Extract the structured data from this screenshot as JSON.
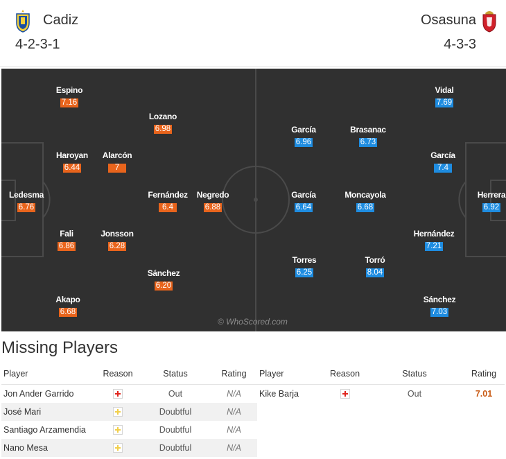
{
  "home": {
    "name": "Cadiz",
    "formation": "4-2-3-1",
    "crest_icon": "cadiz-crest-icon",
    "color": "#e8641c",
    "players": [
      {
        "name": "Espino",
        "rating": "7.16"
      },
      {
        "name": "Lozano",
        "rating": "6.98"
      },
      {
        "name": "Haroyan",
        "rating": "6.44"
      },
      {
        "name": "Alarcón",
        "rating": "7"
      },
      {
        "name": "Ledesma",
        "rating": "6.76"
      },
      {
        "name": "Fernández",
        "rating": "6.4"
      },
      {
        "name": "Negredo",
        "rating": "6.88"
      },
      {
        "name": "Fali",
        "rating": "6.86"
      },
      {
        "name": "Jonsson",
        "rating": "6.28"
      },
      {
        "name": "Sánchez",
        "rating": "6.20"
      },
      {
        "name": "Akapo",
        "rating": "6.68"
      }
    ]
  },
  "away": {
    "name": "Osasuna",
    "formation": "4-3-3",
    "crest_icon": "osasuna-crest-icon",
    "color": "#1e8ce0",
    "players": [
      {
        "name": "Vidal",
        "rating": "7.69"
      },
      {
        "name": "García",
        "rating": "6.96"
      },
      {
        "name": "Brasanac",
        "rating": "6.73"
      },
      {
        "name": "García",
        "rating": "7.4"
      },
      {
        "name": "García",
        "rating": "6.64"
      },
      {
        "name": "Moncayola",
        "rating": "6.68"
      },
      {
        "name": "Herrera",
        "rating": "6.92"
      },
      {
        "name": "Hernández",
        "rating": "7.21"
      },
      {
        "name": "Torres",
        "rating": "6.25"
      },
      {
        "name": "Torró",
        "rating": "8.04"
      },
      {
        "name": "Sánchez",
        "rating": "7.03"
      }
    ]
  },
  "watermark": "© WhoScored.com",
  "missing": {
    "title": "Missing Players",
    "columns": [
      "Player",
      "Reason",
      "Status",
      "Rating"
    ],
    "home_rows": [
      {
        "player": "Jon Ander Garrido",
        "reason_icon": "injury-icon",
        "status": "Out",
        "rating": "N/A"
      },
      {
        "player": "José Mari",
        "reason_icon": "doubtful-icon",
        "status": "Doubtful",
        "rating": "N/A"
      },
      {
        "player": "Santiago Arzamendia",
        "reason_icon": "doubtful-icon",
        "status": "Doubtful",
        "rating": "N/A"
      },
      {
        "player": "Nano Mesa",
        "reason_icon": "doubtful-icon",
        "status": "Doubtful",
        "rating": "N/A"
      }
    ],
    "away_rows": [
      {
        "player": "Kike Barja",
        "reason_icon": "injury-icon",
        "status": "Out",
        "rating": "7.01"
      }
    ]
  }
}
